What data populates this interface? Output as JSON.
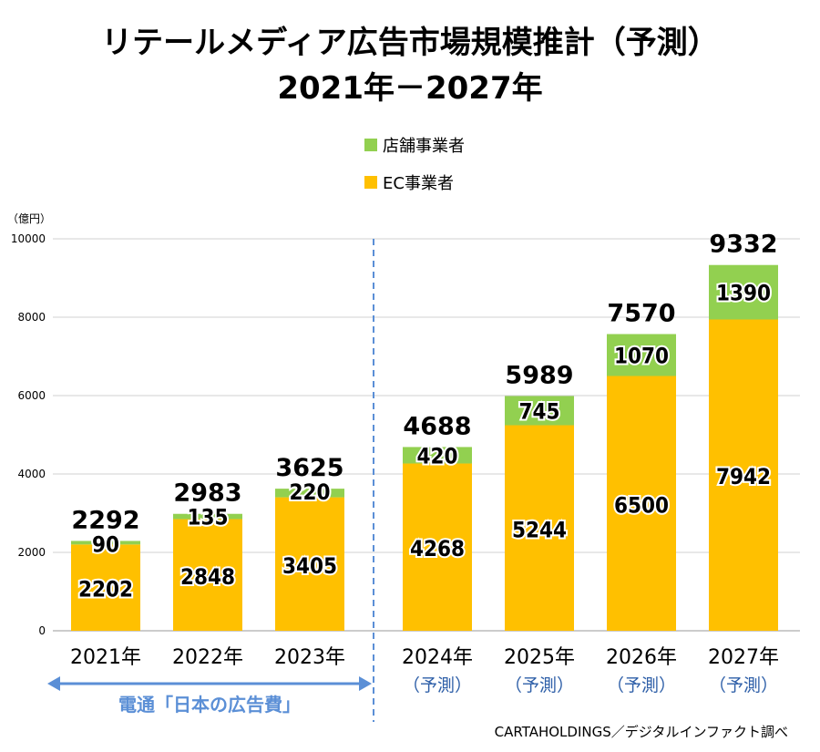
{
  "chart_data": {
    "type": "bar",
    "stacked": true,
    "title": "リテールメディア広告市場規模推計（予測）",
    "subtitle": "2021年－2027年",
    "ylabel": "（億円）",
    "ylim": [
      0,
      10000
    ],
    "yticks": [
      0,
      2000,
      4000,
      6000,
      8000,
      10000
    ],
    "grid": true,
    "legend_placement": "top-center",
    "categories": [
      "2021年",
      "2022年",
      "2023年",
      "2024年",
      "2025年",
      "2026年",
      "2027年"
    ],
    "forecast_labels": [
      "",
      "",
      "",
      "（予測）",
      "（予測）",
      "（予測）",
      "（予測）"
    ],
    "series": [
      {
        "name": "EC事業者",
        "color": "#FFC000",
        "values": [
          2202,
          2848,
          3405,
          4268,
          5244,
          6500,
          7942
        ]
      },
      {
        "name": "店舗事業者",
        "color": "#92D050",
        "values": [
          90,
          135,
          220,
          420,
          745,
          1070,
          1390
        ]
      }
    ],
    "totals": [
      2292,
      2983,
      3625,
      4688,
      5989,
      7570,
      9332
    ],
    "annotations": {
      "historical_source": "電通「日本の広告費」",
      "source": "CARTAHOLDINGS／デジタルインファクト調べ"
    },
    "colors": {
      "forecast_text": "#2E5FA8",
      "arrow": "#5B8FD6",
      "divider": "#5B8FD6",
      "grid": "#D0D0D0"
    }
  }
}
